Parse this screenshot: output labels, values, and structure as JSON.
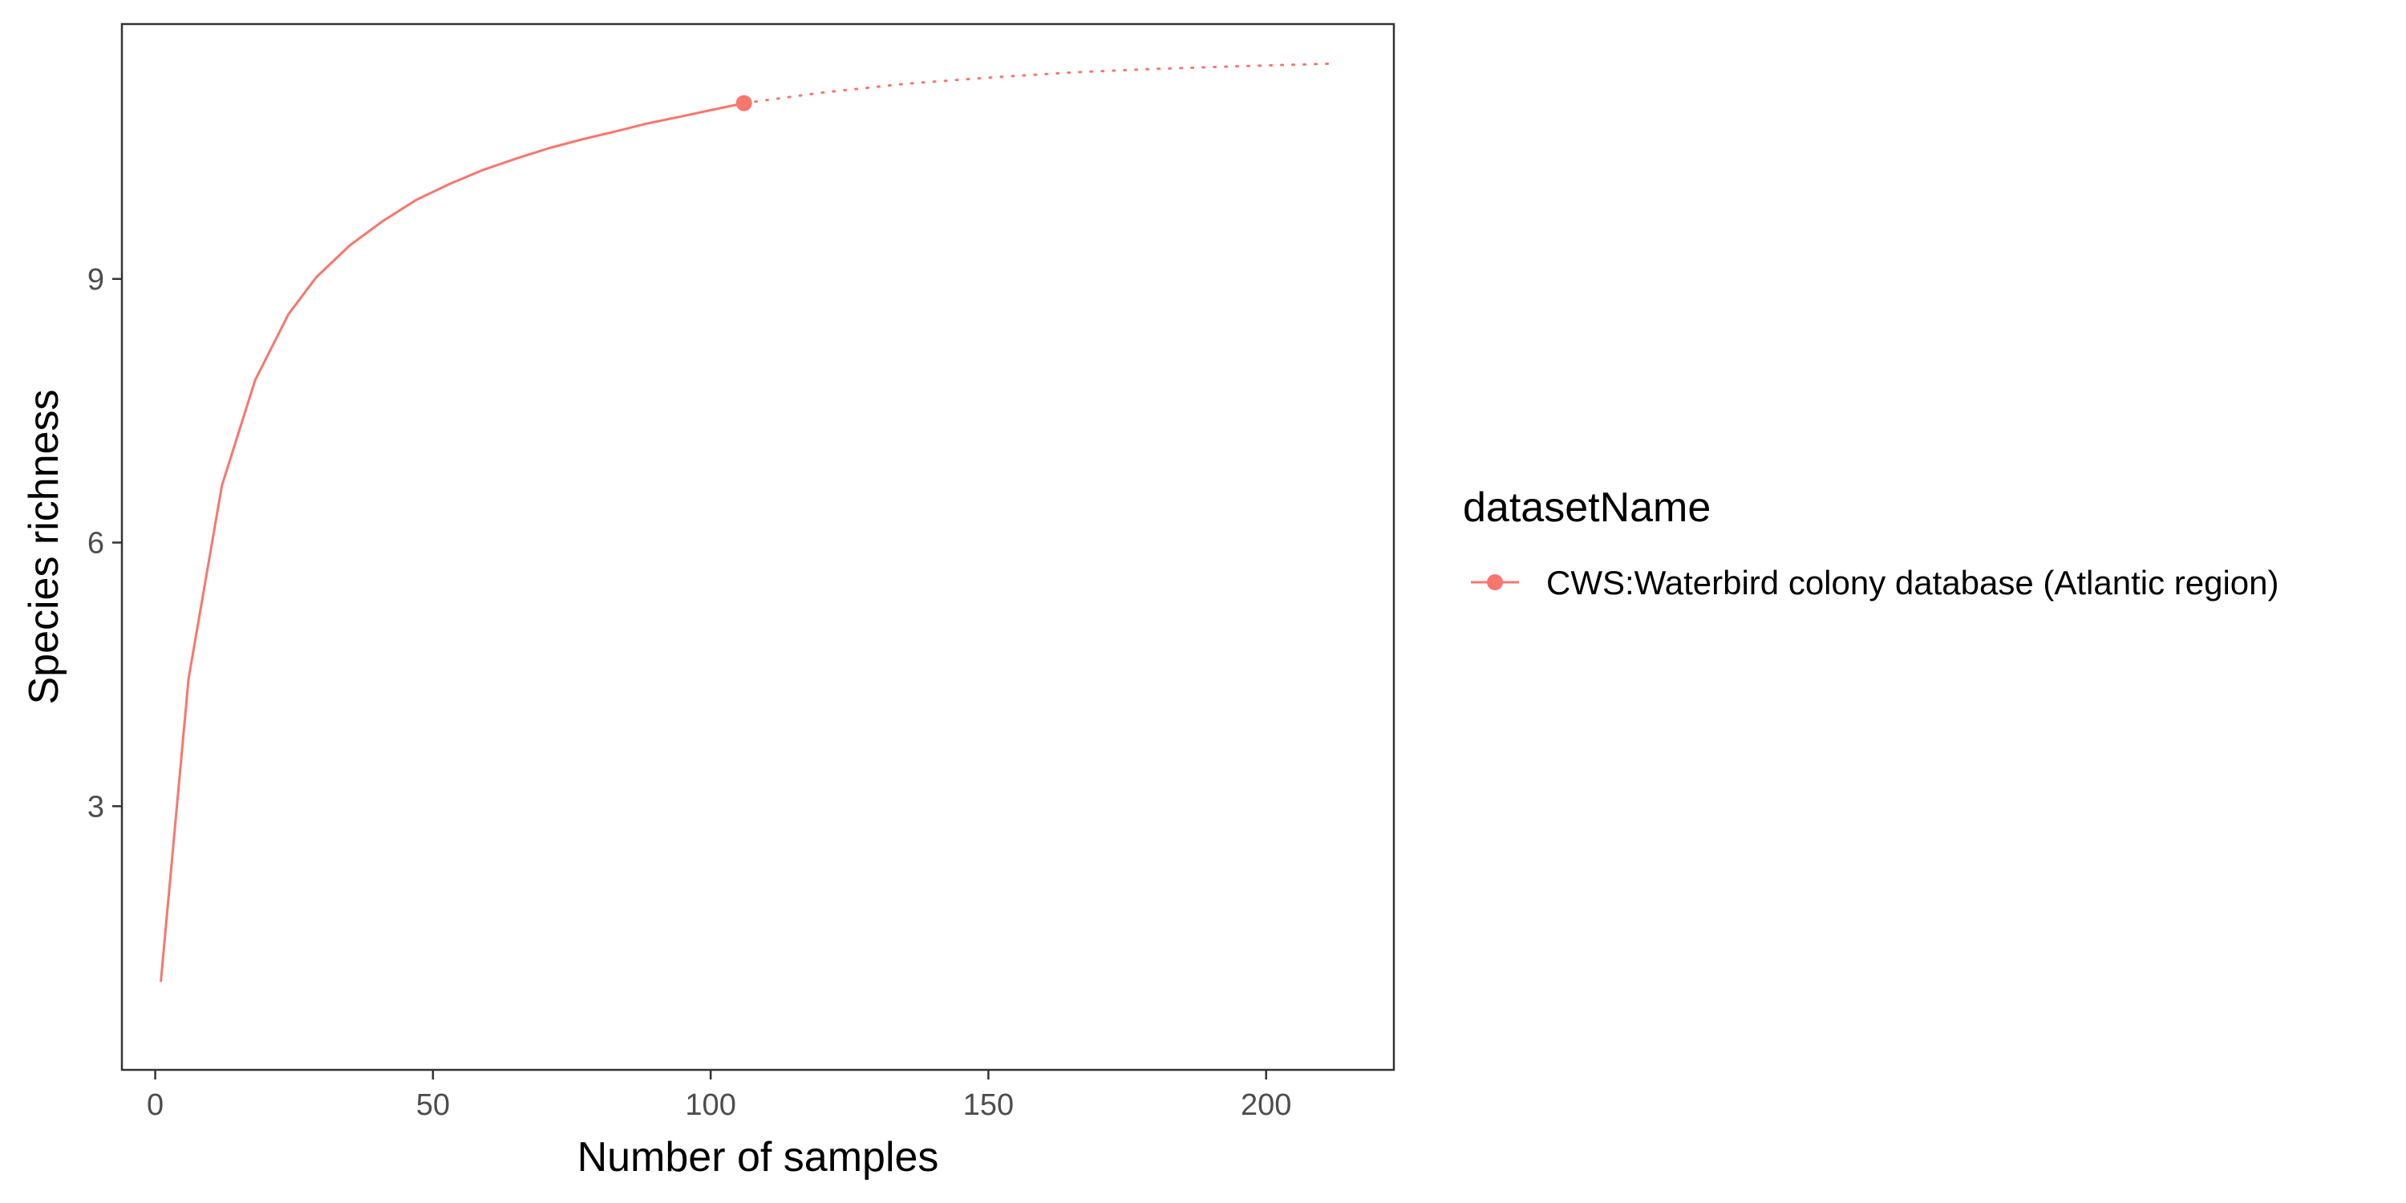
{
  "chart_data": {
    "type": "line",
    "xlabel": "Number of samples",
    "ylabel": "Species richness",
    "xlim": [
      -6,
      223
    ],
    "ylim": [
      0.0,
      11.9
    ],
    "x_ticks": [
      0,
      50,
      100,
      150,
      200
    ],
    "y_ticks": [
      3,
      6,
      9
    ],
    "grid": false,
    "legend": {
      "title": "datasetName",
      "placement": "right",
      "entries": [
        "CWS:Waterbird colony database (Atlantic region)"
      ]
    },
    "series": [
      {
        "name": "CWS:Waterbird colony database (Atlantic region)",
        "color": "#F8766D",
        "observed": {
          "x": 106,
          "y": 11.0
        },
        "interpolated": {
          "x": [
            1,
            6,
            12,
            18,
            24,
            29,
            35,
            41,
            47,
            53,
            59,
            65,
            71,
            77,
            83,
            88,
            94,
            100,
            106
          ],
          "y": [
            1.0,
            4.45,
            6.65,
            7.85,
            8.6,
            9.02,
            9.38,
            9.66,
            9.9,
            10.08,
            10.24,
            10.37,
            10.49,
            10.59,
            10.68,
            10.76,
            10.84,
            10.92,
            11.0
          ]
        },
        "extrapolated": {
          "x": [
            106,
            120,
            135,
            150,
            165,
            180,
            195,
            212
          ],
          "y": [
            11.0,
            11.12,
            11.22,
            11.29,
            11.35,
            11.39,
            11.42,
            11.45
          ]
        }
      }
    ]
  }
}
